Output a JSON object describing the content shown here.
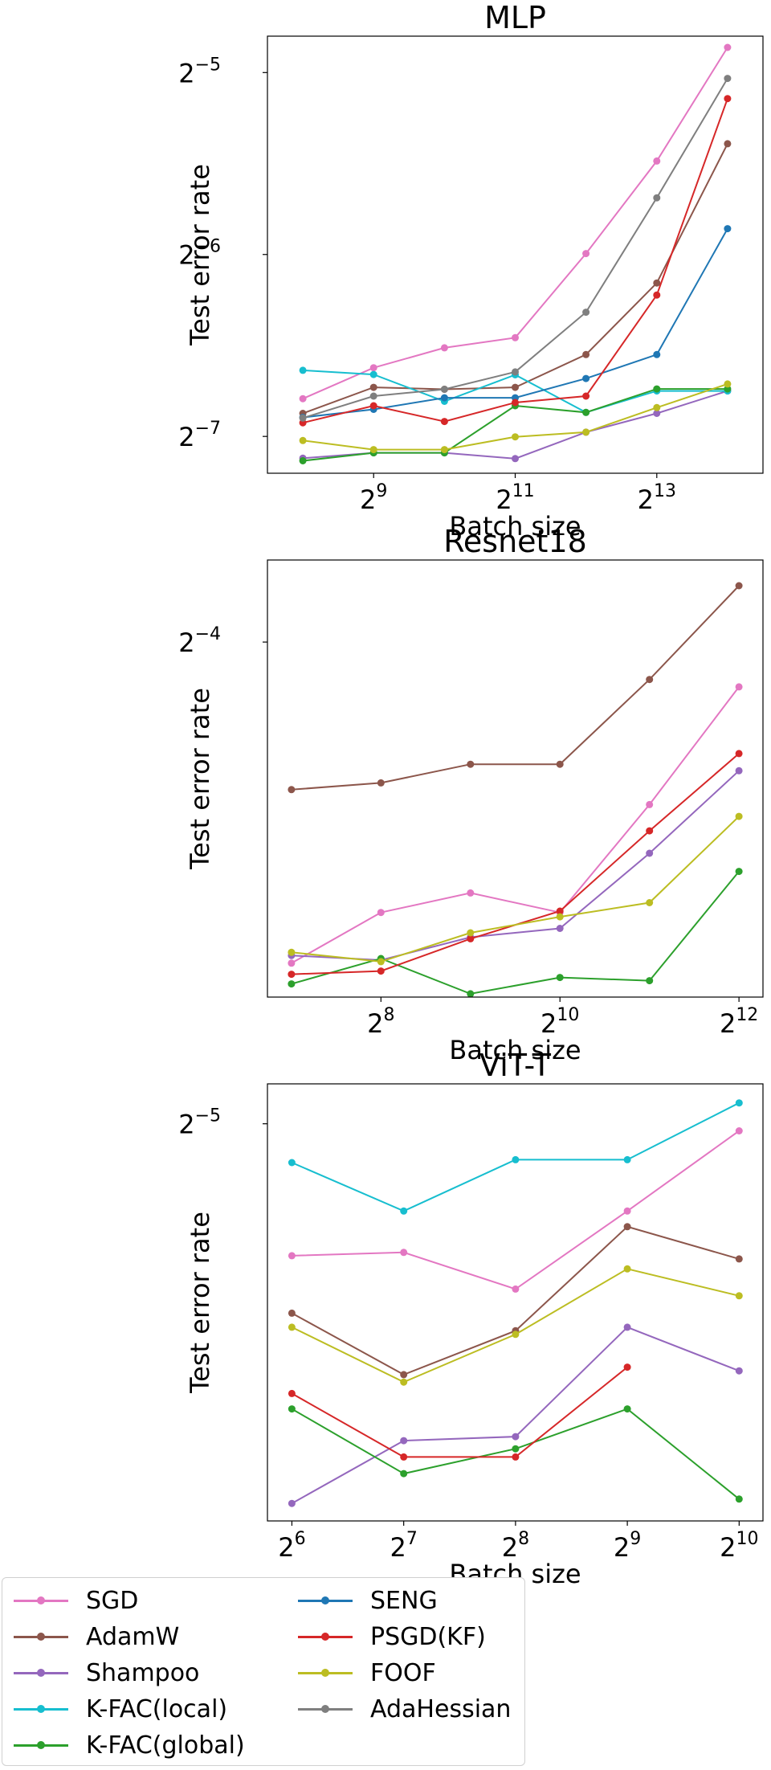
{
  "colors": {
    "SGD": "#e377c2",
    "AdamW": "#8c564b",
    "Shampoo": "#9467bd",
    "K-FAC(local)": "#17becf",
    "K-FAC(global)": "#2ca02c",
    "SENG": "#1f77b4",
    "PSGD(KF)": "#d62728",
    "FOOF": "#bcbd22",
    "AdaHessian": "#7f7f7f"
  },
  "legend": {
    "items": [
      "SGD",
      "AdamW",
      "Shampoo",
      "K-FAC(local)",
      "K-FAC(global)",
      "SENG",
      "PSGD(KF)",
      "FOOF",
      "AdaHessian"
    ]
  },
  "chart_data": [
    {
      "type": "line",
      "title": "MLP",
      "xlabel": "Batch size",
      "ylabel": "Test error rate",
      "xscale": "log2",
      "yscale": "log2",
      "x": [
        256,
        512,
        1024,
        2048,
        4096,
        8192,
        16384
      ],
      "xticks": [
        {
          "value": 512,
          "base": "2",
          "exp": "9"
        },
        {
          "value": 2048,
          "base": "2",
          "exp": "11"
        },
        {
          "value": 8192,
          "base": "2",
          "exp": "13"
        }
      ],
      "yticks": [
        {
          "value": 0.03125,
          "base": "2",
          "exp": "−5"
        },
        {
          "value": 0.015625,
          "base": "2",
          "exp": "−6"
        },
        {
          "value": 0.0078125,
          "base": "2",
          "exp": "−7"
        }
      ],
      "xlim": [
        181,
        23170
      ],
      "ylim": [
        0.00679,
        0.0359
      ],
      "grid": false,
      "series": [
        {
          "name": "SGD",
          "values": [
            0.00902,
            0.01015,
            0.01095,
            0.01138,
            0.01568,
            0.02231,
            0.03439
          ]
        },
        {
          "name": "AdamW",
          "values": [
            0.00853,
            0.00942,
            0.00935,
            0.00942,
            0.01067,
            0.01402,
            0.02383
          ]
        },
        {
          "name": "Shampoo",
          "values": [
            0.00719,
            0.00734,
            0.00734,
            0.00718,
            0.00794,
            0.00853,
            0.00929
          ]
        },
        {
          "name": "K-FAC(local)",
          "values": [
            0.01005,
            0.00989,
            0.00893,
            0.00988,
            0.00856,
            0.00929,
            0.00929
          ]
        },
        {
          "name": "K-FAC(global)",
          "values": [
            0.00712,
            0.00734,
            0.00734,
            0.00878,
            0.00856,
            0.00936,
            0.00936
          ]
        },
        {
          "name": "SENG",
          "values": [
            0.0084,
            0.00866,
            0.00905,
            0.00905,
            0.00974,
            0.01067,
            0.01724
          ]
        },
        {
          "name": "PSGD(KF)",
          "values": [
            0.00823,
            0.00878,
            0.00827,
            0.00889,
            0.00911,
            0.01339,
            0.0283
          ]
        },
        {
          "name": "FOOF",
          "values": [
            0.00769,
            0.00743,
            0.00743,
            0.0078,
            0.00794,
            0.00872,
            0.00954
          ]
        },
        {
          "name": "AdaHessian",
          "values": [
            0.00838,
            0.00911,
            0.00935,
            0.00999,
            0.01254,
            0.01939,
            0.03056
          ]
        }
      ]
    },
    {
      "type": "line",
      "title": "Resnet18",
      "xlabel": "Batch size",
      "ylabel": "Test error rate",
      "xscale": "log2",
      "yscale": "log2",
      "x": [
        128,
        256,
        512,
        1024,
        2048,
        4096
      ],
      "xticks": [
        {
          "value": 256,
          "base": "2",
          "exp": "8"
        },
        {
          "value": 1024,
          "base": "2",
          "exp": "10"
        },
        {
          "value": 4096,
          "base": "2",
          "exp": "12"
        }
      ],
      "yticks": [
        {
          "value": 0.0625,
          "base": "2",
          "exp": "−4"
        }
      ],
      "xlim": [
        106.3,
        4932
      ],
      "ylim": [
        0.0323,
        0.0728
      ],
      "grid": false,
      "series": [
        {
          "name": "SGD",
          "values": [
            0.0344,
            0.0378,
            0.0392,
            0.0378,
            0.0462,
            0.0575
          ]
        },
        {
          "name": "AdamW",
          "values": [
            0.0475,
            0.0481,
            0.0498,
            0.0498,
            0.0583,
            0.0694
          ]
        },
        {
          "name": "Shampoo",
          "values": [
            0.0349,
            0.0346,
            0.0361,
            0.0367,
            0.0422,
            0.0492
          ]
        },
        {
          "name": "K-FAC(global)",
          "values": [
            0.0331,
            0.0347,
            0.0325,
            0.0335,
            0.0333,
            0.0408
          ]
        },
        {
          "name": "PSGD(KF)",
          "values": [
            0.0337,
            0.0339,
            0.036,
            0.0379,
            0.044,
            0.0508
          ]
        },
        {
          "name": "FOOF",
          "values": [
            0.0351,
            0.0345,
            0.0364,
            0.0375,
            0.0385,
            0.0452
          ]
        }
      ]
    },
    {
      "type": "line",
      "title": "ViT-T",
      "xlabel": "Batch size",
      "ylabel": "Test error rate",
      "xscale": "log2",
      "yscale": "log2",
      "x": [
        64,
        128,
        256,
        512,
        1024
      ],
      "xticks": [
        {
          "value": 64,
          "base": "2",
          "exp": "6"
        },
        {
          "value": 128,
          "base": "2",
          "exp": "7"
        },
        {
          "value": 256,
          "base": "2",
          "exp": "8"
        },
        {
          "value": 512,
          "base": "2",
          "exp": "9"
        },
        {
          "value": 1024,
          "base": "2",
          "exp": "10"
        }
      ],
      "yticks": [
        {
          "value": 0.03125,
          "base": "2",
          "exp": "−5"
        }
      ],
      "xlim": [
        55.0,
        1187
      ],
      "ylim": [
        0.0199,
        0.0327
      ],
      "grid": false,
      "series": [
        {
          "name": "SGD",
          "values": [
            0.0269,
            0.027,
            0.0259,
            0.0283,
            0.031
          ]
        },
        {
          "name": "AdamW",
          "values": [
            0.0252,
            0.0235,
            0.0247,
            0.0278,
            0.0268
          ]
        },
        {
          "name": "Shampoo",
          "values": [
            0.0203,
            0.0218,
            0.0219,
            0.0248,
            0.0236
          ]
        },
        {
          "name": "K-FAC(local)",
          "values": [
            0.0299,
            0.0283,
            0.03,
            0.03,
            0.032
          ]
        },
        {
          "name": "K-FAC(global)",
          "values": [
            0.0226,
            0.021,
            0.0216,
            0.0226,
            0.0204
          ]
        },
        {
          "name": "PSGD(KF)",
          "values": [
            0.023,
            0.0214,
            0.0214,
            0.0237,
            null
          ]
        },
        {
          "name": "FOOF",
          "values": [
            0.0248,
            0.0233,
            0.0246,
            0.0265,
            0.0257
          ]
        }
      ]
    }
  ]
}
